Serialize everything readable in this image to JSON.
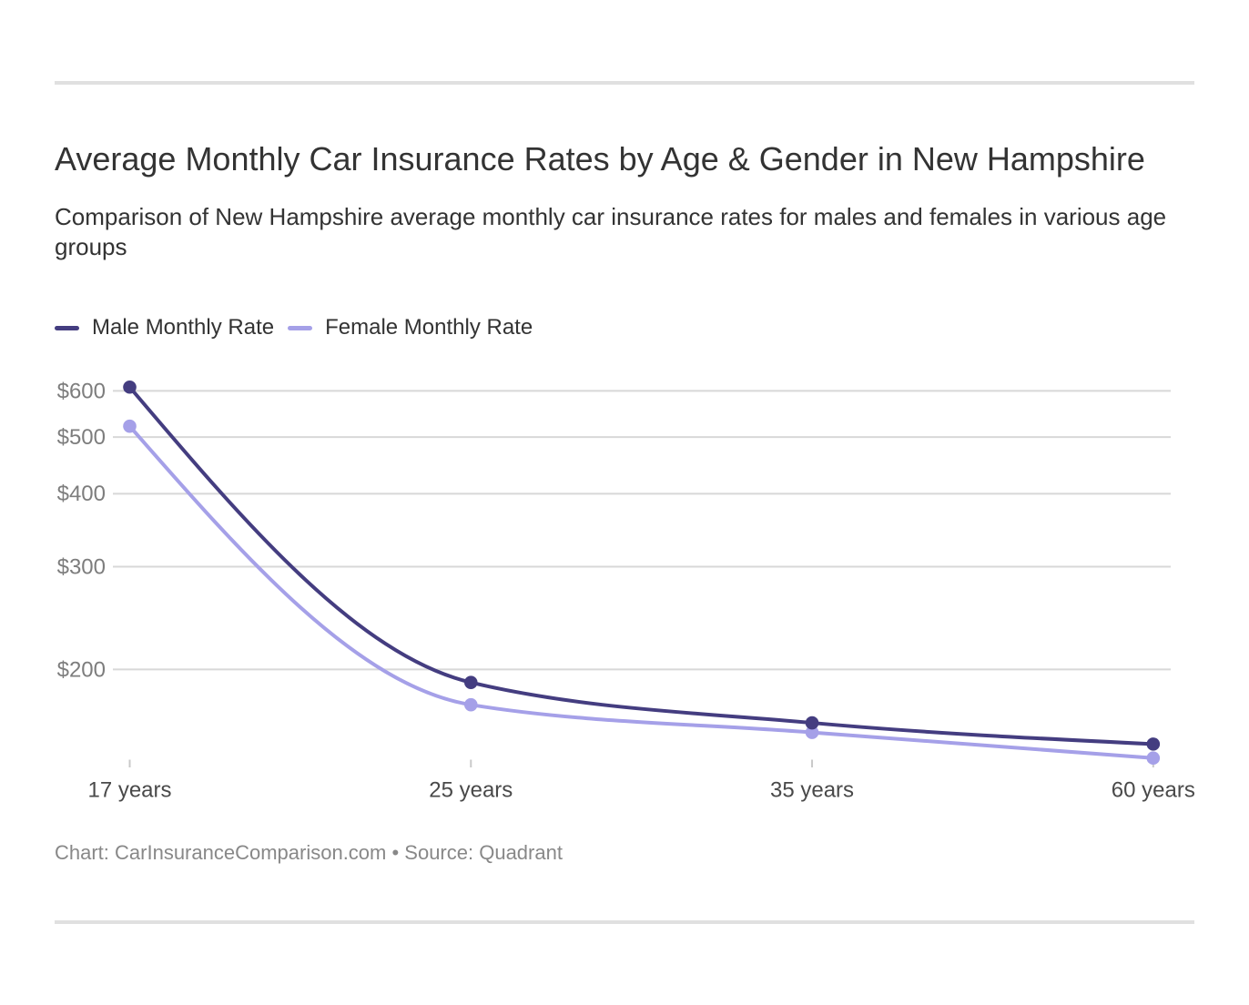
{
  "chart_data": {
    "type": "line",
    "title": "Average Monthly Car Insurance Rates by Age & Gender in New Hampshire",
    "subtitle": "Comparison of New Hampshire average monthly car insurance rates for males and females in various age groups",
    "categories": [
      "17 years",
      "25 years",
      "35 years",
      "60 years"
    ],
    "series": [
      {
        "name": "Male Monthly Rate",
        "color": "#443d80",
        "values": [
          609,
          190,
          162,
          149
        ]
      },
      {
        "name": "Female Monthly Rate",
        "color": "#a5a0e8",
        "values": [
          522,
          174,
          156,
          141
        ]
      }
    ],
    "y_axis": {
      "scale": "log",
      "tick_values": [
        200,
        300,
        400,
        500,
        600
      ],
      "tick_labels": [
        "$200",
        "$300",
        "$400",
        "$500",
        "$600"
      ]
    },
    "x_axis": {
      "type": "category"
    },
    "grid": "horizontal",
    "legend_position": "top",
    "credit_line": "Chart: CarInsuranceComparison.com • Source: Quadrant"
  }
}
